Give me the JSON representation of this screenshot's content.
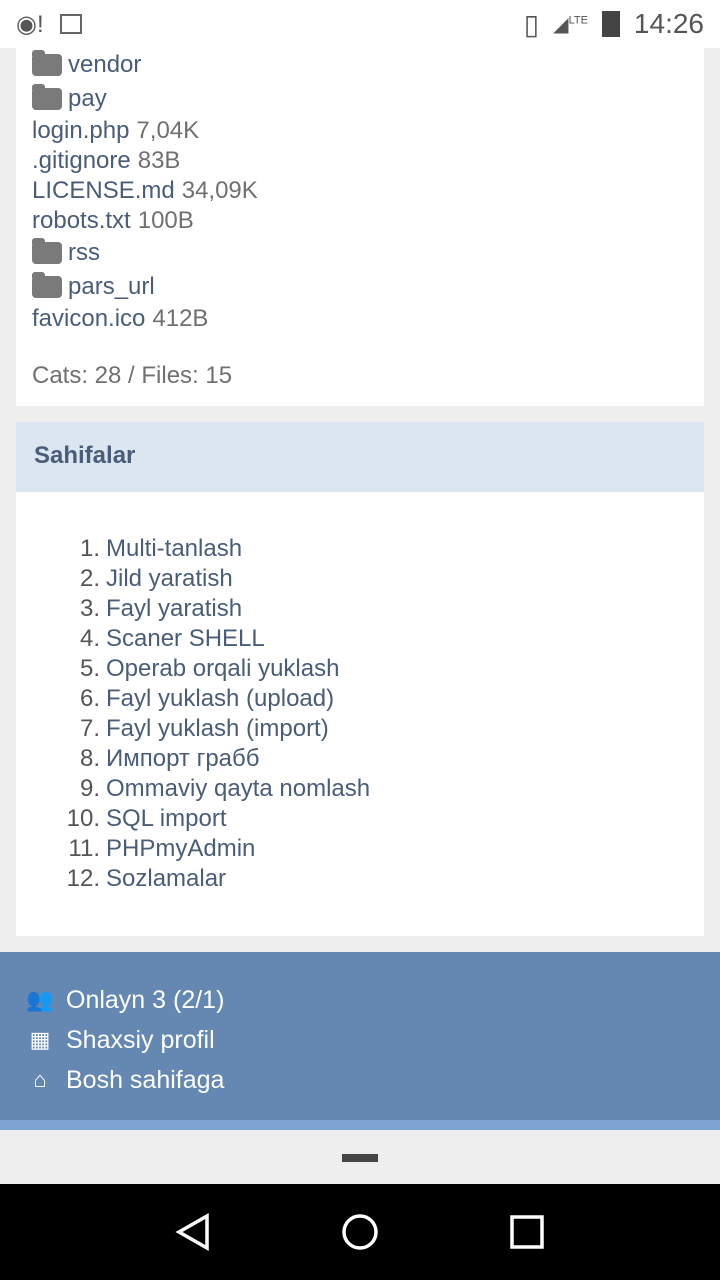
{
  "status_bar": {
    "time": "14:26",
    "network": "LTE",
    "icons": [
      "disc-icon",
      "image-icon",
      "vibrate-icon",
      "signal-icon",
      "battery-charging-icon"
    ]
  },
  "files": [
    {
      "type": "dir",
      "name": "vendor"
    },
    {
      "type": "dir",
      "name": "pay"
    },
    {
      "type": "file",
      "name": "login.php",
      "size": "7,04K"
    },
    {
      "type": "file",
      "name": ".gitignore",
      "size": "83B"
    },
    {
      "type": "file",
      "name": "LICENSE.md",
      "size": "34,09K"
    },
    {
      "type": "file",
      "name": "robots.txt",
      "size": "100B"
    },
    {
      "type": "dir",
      "name": "rss"
    },
    {
      "type": "dir",
      "name": "pars_url"
    },
    {
      "type": "file",
      "name": "favicon.ico",
      "size": "412B"
    }
  ],
  "stats": "Cats: 28 / Files: 15",
  "pages": {
    "title": "Sahifalar",
    "items": [
      "Multi-tanlash",
      "Jild yaratish",
      "Fayl yaratish",
      "Scaner SHELL",
      "Operab orqali yuklash",
      "Fayl yuklash (upload)",
      "Fayl yuklash (import)",
      "Импорт грабб",
      "Ommaviy qayta nomlash",
      "SQL import",
      "PHPmyAdmin",
      "Sozlamalar"
    ]
  },
  "footer": [
    {
      "icon": "users-icon",
      "label": "Onlayn 3 (2/1)"
    },
    {
      "icon": "grid-icon",
      "label": "Shaxsiy profil"
    },
    {
      "icon": "home-icon",
      "label": "Bosh sahifaga"
    }
  ],
  "colors": {
    "text": "#4a5d78",
    "header_bg": "#dce6f1",
    "footer_bg": "#6488b2"
  }
}
